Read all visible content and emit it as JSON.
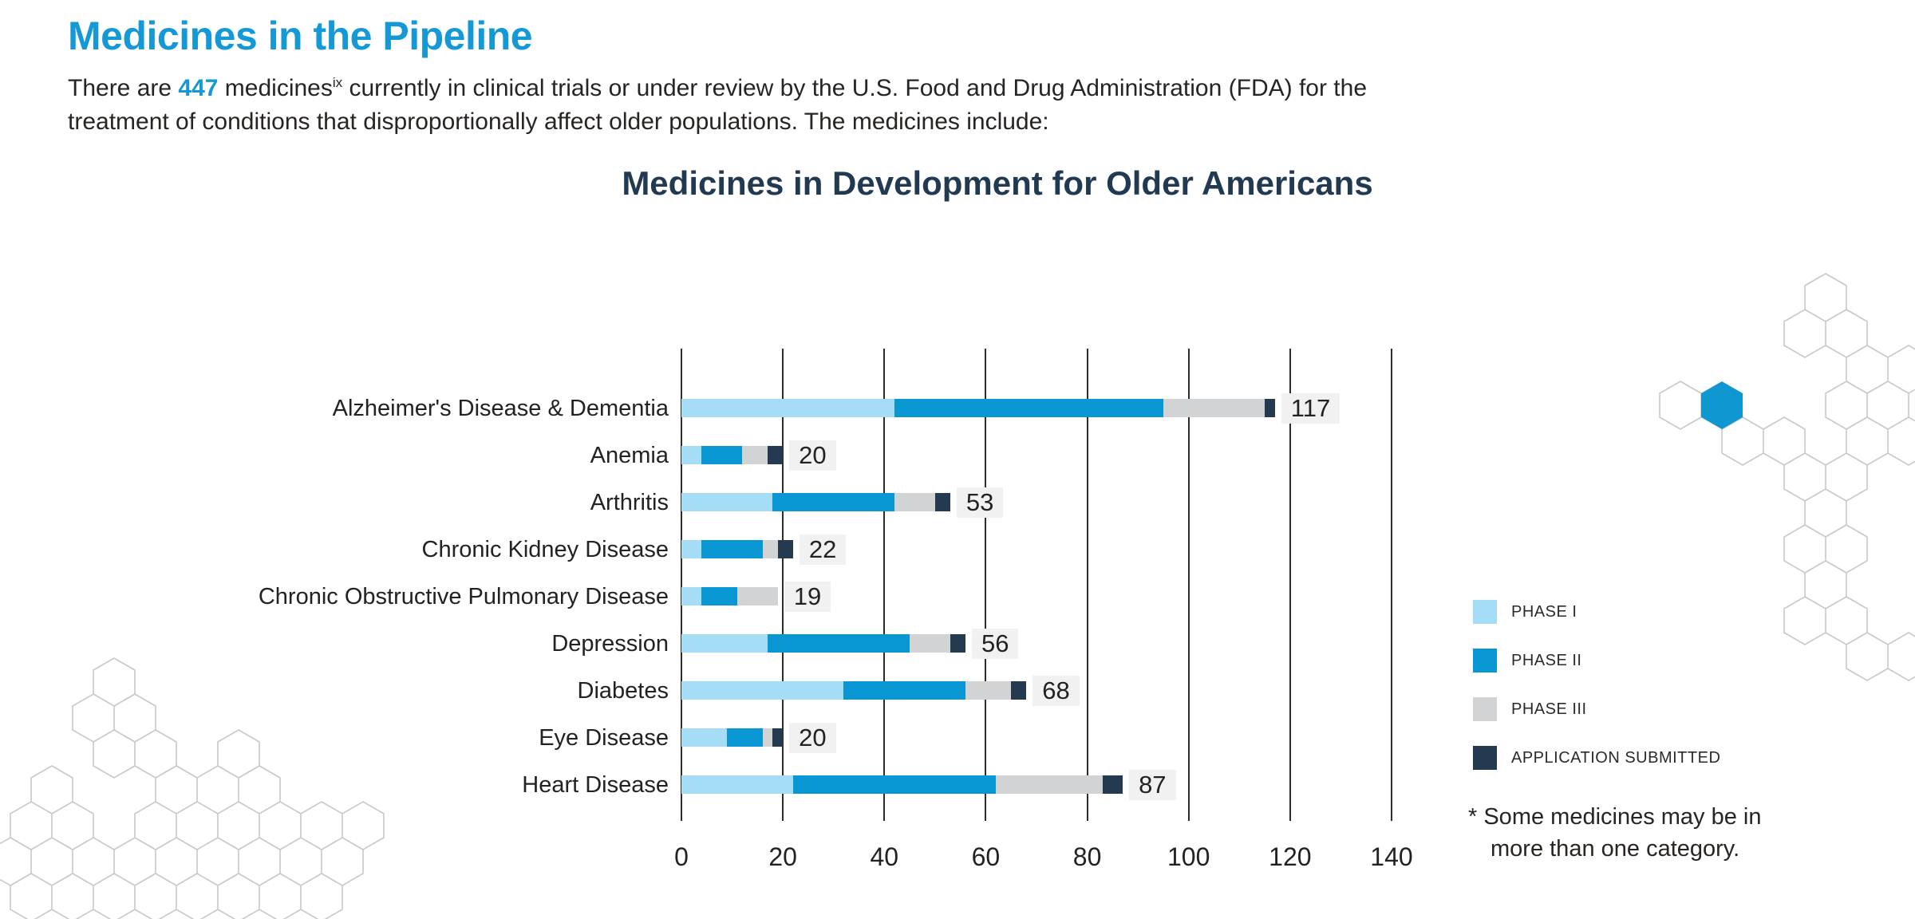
{
  "header": {
    "title": "Medicines in the Pipeline"
  },
  "intro": {
    "line1_pre": "There are ",
    "count": "447",
    "line1_mid": " medicines",
    "superscript": "ix",
    "line1_rest": " currently in clinical trials or under review by the U.S. Food and Drug Administration (FDA) for the",
    "line2": "treatment of conditions that disproportionally affect older populations. The medicines include:"
  },
  "chart_data": {
    "type": "bar",
    "orientation": "horizontal",
    "stacked": true,
    "title": "Medicines in Development for Older Americans",
    "xlabel": "",
    "ylabel": "",
    "xlim": [
      0,
      140
    ],
    "x_ticks": [
      0,
      20,
      40,
      60,
      80,
      100,
      120,
      140
    ],
    "grid": true,
    "legend_position": "right",
    "categories": [
      "Alzheimer's Disease & Dementia",
      "Anemia",
      "Arthritis",
      "Chronic Kidney Disease",
      "Chronic Obstructive Pulmonary Disease",
      "Depression",
      "Diabetes",
      "Eye Disease",
      "Heart Disease"
    ],
    "series": [
      {
        "name": "PHASE I",
        "color": "#a5ddf6",
        "values": [
          42,
          4,
          18,
          4,
          4,
          17,
          32,
          9,
          22
        ]
      },
      {
        "name": "PHASE II",
        "color": "#0997d3",
        "values": [
          53,
          8,
          24,
          12,
          7,
          28,
          24,
          7,
          40
        ]
      },
      {
        "name": "PHASE III",
        "color": "#d2d3d5",
        "values": [
          20,
          5,
          8,
          3,
          8,
          8,
          9,
          2,
          21
        ]
      },
      {
        "name": "APPLICATION SUBMITTED",
        "color": "#243a51",
        "values": [
          2,
          3,
          3,
          3,
          0,
          3,
          3,
          2,
          4
        ]
      }
    ],
    "totals": [
      117,
      20,
      53,
      22,
      19,
      56,
      68,
      20,
      87
    ]
  },
  "footnote": {
    "line1": "* Some medicines may be in",
    "line2": "more than one category."
  },
  "colors": {
    "accent_blue": "#1599d6",
    "navy_title": "#213a52",
    "value_label_bg": "#f1f1f2",
    "gridline": "#2e2b28",
    "hexagon_outline": "#c7c8ca",
    "hexagon_fill": "#0f97d1"
  }
}
